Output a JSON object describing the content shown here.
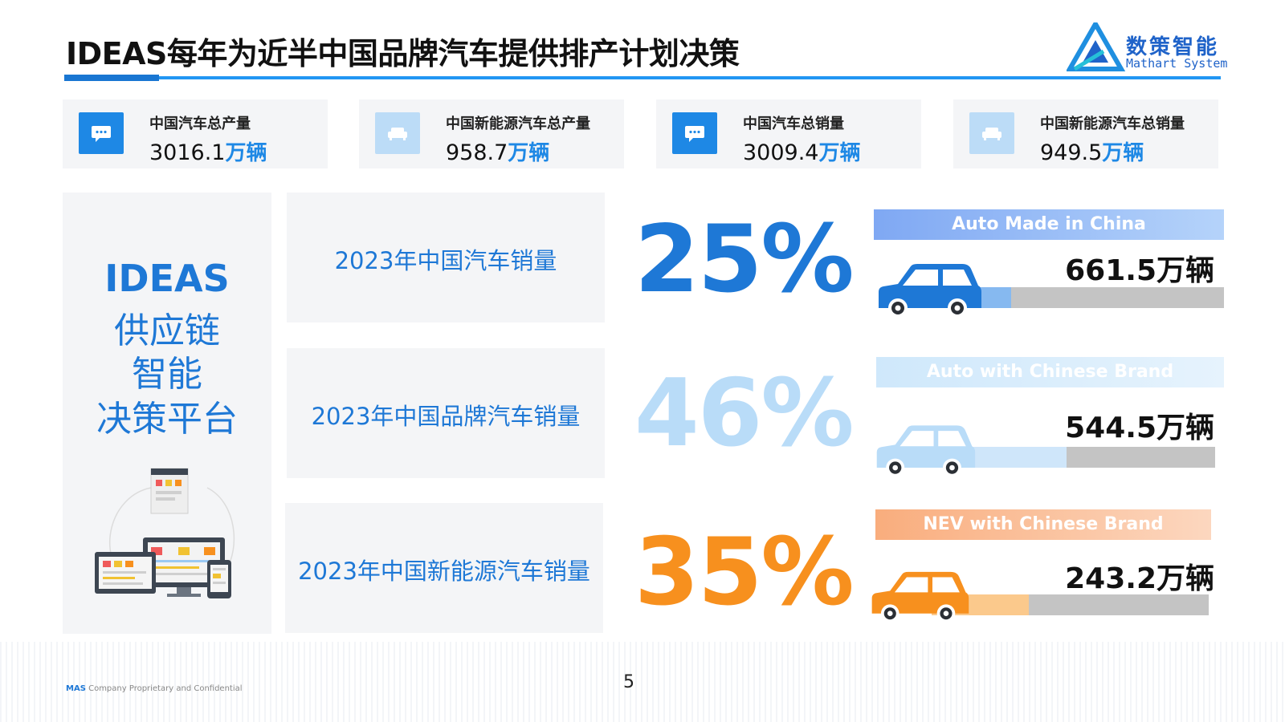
{
  "header": {
    "title": "IDEAS每年为近半中国品牌汽车提供排产计划决策",
    "logo_cn": "数策智能",
    "logo_en": "Mathart System"
  },
  "stats": [
    {
      "label": "中国汽车总产量",
      "number": "3016.1",
      "unit": "万辆",
      "icon": "chat-icon"
    },
    {
      "label": "中国新能源汽车总产量",
      "number": "958.7",
      "unit": "万辆",
      "icon": "sofa-icon"
    },
    {
      "label": "中国汽车总销量",
      "number": "3009.4",
      "unit": "万辆",
      "icon": "chat-icon"
    },
    {
      "label": "中国新能源汽车总销量",
      "number": "949.5",
      "unit": "万辆",
      "icon": "sofa-icon"
    }
  ],
  "platform": {
    "line1": "IDEAS",
    "line2": "供应链",
    "line3": "智能",
    "line4": "决策平台"
  },
  "rows": [
    {
      "label": "2023年中国汽车销量",
      "percent": "25%",
      "percent_value": 25,
      "color": "#1e78d6",
      "bar_color": "#86b9f0",
      "banner": "Auto Made in China",
      "banner_color": "#7fb0f3",
      "amount": "661.5万辆"
    },
    {
      "label": "2023年中国品牌汽车销量",
      "percent": "46%",
      "percent_value": 46,
      "color": "#b9dcf8",
      "bar_color": "#cfe6fa",
      "banner": "Auto with Chinese Brand",
      "banner_color": "#cfe8fb",
      "amount": "544.5万辆"
    },
    {
      "label": "2023年中国新能源汽车销量",
      "percent": "35%",
      "percent_value": 35,
      "color": "#f7901e",
      "bar_color": "#fbc98c",
      "banner": "NEV with Chinese Brand",
      "banner_color": "#f9b98d",
      "amount": "243.2万辆"
    }
  ],
  "footer": {
    "brand": "MAS",
    "text": "Company Proprietary and Confidential",
    "page": "5"
  }
}
